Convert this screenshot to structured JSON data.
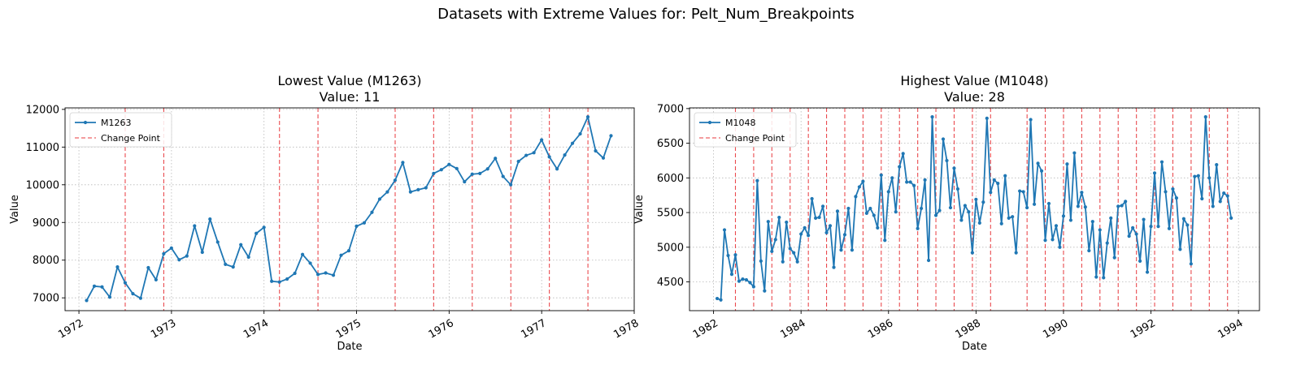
{
  "suptitle": "Datasets with Extreme Values for: Pelt_Num_Breakpoints",
  "chart_data": [
    {
      "type": "line",
      "title": "Lowest Value (M1263)",
      "subtitle": "Value: 11",
      "xlabel": "Date",
      "ylabel": "Value",
      "xlim": [
        1971.85,
        1978.0
      ],
      "ylim": [
        6660,
        12040
      ],
      "xticks": [
        1972,
        1973,
        1974,
        1975,
        1976,
        1977,
        1978
      ],
      "yticks": [
        7000,
        8000,
        9000,
        10000,
        11000,
        12000
      ],
      "grid": true,
      "legend_position": "top-left",
      "series": [
        {
          "name": "M1263",
          "color": "#1f77b4",
          "x_start": 1972.083,
          "x_step": 0.08333,
          "values": [
            6930,
            7310,
            7290,
            7020,
            7820,
            7400,
            7110,
            6990,
            7800,
            7480,
            8170,
            8320,
            8010,
            8110,
            8910,
            8210,
            9090,
            8480,
            7890,
            7820,
            8410,
            8080,
            8710,
            8870,
            7440,
            7420,
            7500,
            7650,
            8150,
            7920,
            7620,
            7660,
            7600,
            8130,
            8250,
            8900,
            8990,
            9270,
            9620,
            9810,
            10120,
            10590,
            9810,
            9870,
            9920,
            10300,
            10400,
            10540,
            10430,
            10080,
            10280,
            10300,
            10420,
            10700,
            10220,
            10000,
            10620,
            10780,
            10850,
            11190,
            10740,
            10420,
            10790,
            11100,
            11350,
            11800,
            10900,
            10710,
            11300
          ]
        }
      ],
      "change_points": {
        "name": "Change Point",
        "color": "#e8383d",
        "x": [
          1972.5,
          1972.917,
          1974.167,
          1974.583,
          1975.417,
          1975.833,
          1976.25,
          1976.667,
          1977.083,
          1977.5
        ]
      }
    },
    {
      "type": "line",
      "title": "Highest Value (M1048)",
      "subtitle": "Value: 28",
      "xlabel": "Date",
      "ylabel": "Value",
      "xlim": [
        1981.45,
        1994.48
      ],
      "ylim": [
        4085,
        7010
      ],
      "xticks": [
        1982,
        1984,
        1986,
        1988,
        1990,
        1992,
        1994
      ],
      "yticks": [
        4500,
        5000,
        5500,
        6000,
        6500,
        7000
      ],
      "grid": true,
      "legend_position": "top-left",
      "series": [
        {
          "name": "M1048",
          "color": "#1f77b4",
          "x_start": 1982.083,
          "x_step": 0.08333,
          "values": [
            4260,
            4240,
            5250,
            4880,
            4610,
            4890,
            4510,
            4540,
            4530,
            4490,
            4430,
            5960,
            4800,
            4370,
            5370,
            4940,
            5110,
            5430,
            4790,
            5360,
            4980,
            4920,
            4790,
            5190,
            5280,
            5170,
            5700,
            5420,
            5430,
            5590,
            5210,
            5310,
            4710,
            5520,
            4960,
            5180,
            5560,
            4960,
            5730,
            5870,
            5950,
            5490,
            5560,
            5460,
            5280,
            6040,
            5100,
            5800,
            6000,
            5510,
            6160,
            6350,
            5940,
            5940,
            5890,
            5270,
            5560,
            5970,
            4810,
            6880,
            5460,
            5530,
            6560,
            6250,
            5570,
            6140,
            5840,
            5390,
            5600,
            5510,
            4920,
            5690,
            5350,
            5650,
            6860,
            5790,
            5970,
            5920,
            5340,
            6030,
            5420,
            5440,
            4920,
            5810,
            5800,
            5570,
            6840,
            5620,
            6210,
            6100,
            5100,
            5630,
            5110,
            5310,
            5000,
            5450,
            6200,
            5390,
            6360,
            5590,
            5790,
            5580,
            4950,
            5370,
            4570,
            5250,
            4560,
            5060,
            5420,
            4850,
            5590,
            5600,
            5660,
            5160,
            5280,
            5190,
            4800,
            5400,
            4640,
            5300,
            6070,
            5300,
            6230,
            5800,
            5270,
            5840,
            5710,
            4970,
            5410,
            5320,
            4760,
            6020,
            6030,
            5700,
            6880,
            6000,
            5590,
            6190,
            5660,
            5780,
            5740,
            5420
          ]
        }
      ],
      "change_points": {
        "name": "Change Point",
        "color": "#e8383d",
        "x": [
          1982.5,
          1982.917,
          1983.333,
          1983.75,
          1984.167,
          1984.583,
          1985.0,
          1985.417,
          1985.833,
          1986.25,
          1986.667,
          1987.083,
          1987.5,
          1987.917,
          1988.333,
          1989.167,
          1989.583,
          1990.0,
          1990.417,
          1990.833,
          1991.25,
          1991.667,
          1992.083,
          1992.5,
          1992.917,
          1993.333,
          1993.75
        ]
      }
    }
  ]
}
